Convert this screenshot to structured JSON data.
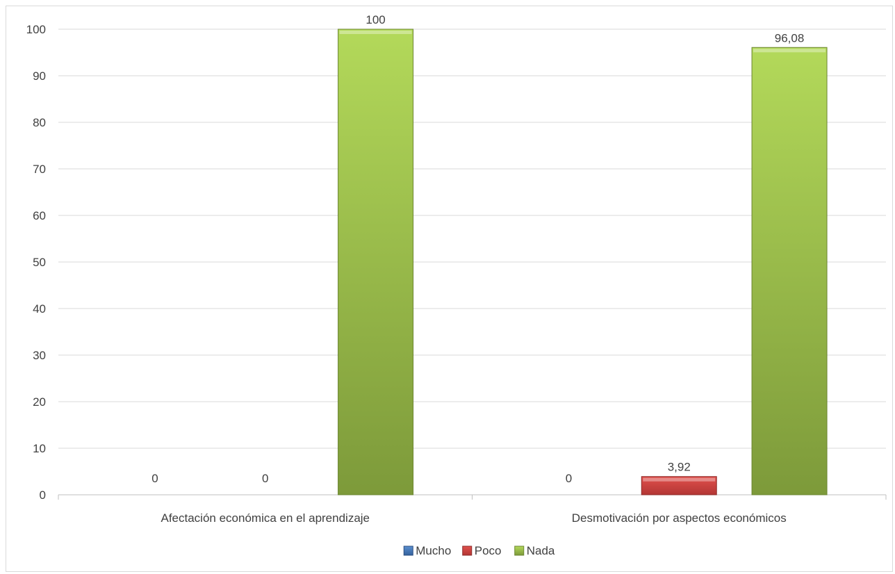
{
  "chart_data": {
    "type": "bar",
    "title": "",
    "xlabel": "",
    "ylabel": "",
    "categories": [
      "Afectación económica en el aprendizaje",
      "Desmotivación por aspectos económicos"
    ],
    "series": [
      {
        "name": "Mucho",
        "values": [
          0,
          0
        ],
        "color": "#4f81bd",
        "labels": [
          "0",
          "0"
        ]
      },
      {
        "name": "Poco",
        "values": [
          0,
          3.92
        ],
        "color": "#c0504d",
        "labels": [
          "0",
          "3,92"
        ]
      },
      {
        "name": "Nada",
        "values": [
          100,
          96.08
        ],
        "color": "#9bbb59",
        "labels": [
          "100",
          "96,08"
        ]
      }
    ],
    "ylim": [
      0,
      100
    ],
    "yticks": [
      0,
      10,
      20,
      30,
      40,
      50,
      60,
      70,
      80,
      90,
      100
    ],
    "grid": true,
    "legend": "bottom"
  }
}
